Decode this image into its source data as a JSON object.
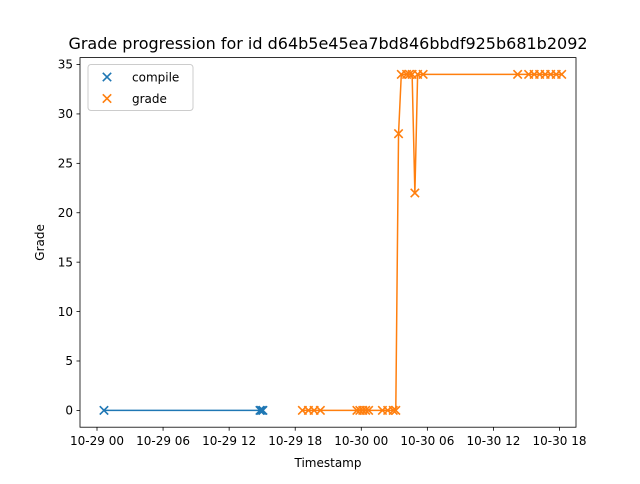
{
  "chart_data": {
    "type": "line",
    "title": "Grade progression for id d64b5e45ea7bd846bbdf925b681b2092",
    "xlabel": "Timestamp",
    "ylabel": "Grade",
    "x_axis": "datetime",
    "xlim": [
      "2024-10-29T00:00",
      "2024-10-31T00:00"
    ],
    "ylim": [
      -1.7,
      35.7
    ],
    "y_ticks": [
      0,
      5,
      10,
      15,
      20,
      25,
      30,
      35
    ],
    "x_ticks": [
      {
        "t": "2024-10-29T00:00",
        "label": "10-29 00"
      },
      {
        "t": "2024-10-29T06:00",
        "label": "10-29 06"
      },
      {
        "t": "2024-10-29T12:00",
        "label": "10-29 12"
      },
      {
        "t": "2024-10-29T18:00",
        "label": "10-29 18"
      },
      {
        "t": "2024-10-30T00:00",
        "label": "10-30 00"
      },
      {
        "t": "2024-10-30T06:00",
        "label": "10-30 06"
      },
      {
        "t": "2024-10-30T12:00",
        "label": "10-30 12"
      },
      {
        "t": "2024-10-30T18:00",
        "label": "10-30 18"
      }
    ],
    "legend_position": "top-left",
    "grid": false,
    "series": [
      {
        "name": "compile",
        "color": "#1f77b4",
        "marker": "x",
        "points": [
          {
            "t": "2024-10-29T00:38",
            "y": 0
          },
          {
            "t": "2024-10-29T14:48",
            "y": 0
          },
          {
            "t": "2024-10-29T14:56",
            "y": 0
          },
          {
            "t": "2024-10-29T15:04",
            "y": 0
          }
        ]
      },
      {
        "name": "grade",
        "color": "#ff7f0e",
        "marker": "x",
        "points": [
          {
            "t": "2024-10-29T18:39",
            "y": 0
          },
          {
            "t": "2024-10-29T19:12",
            "y": 0
          },
          {
            "t": "2024-10-29T19:43",
            "y": 0
          },
          {
            "t": "2024-10-29T20:17",
            "y": 0
          },
          {
            "t": "2024-10-29T23:36",
            "y": 0
          },
          {
            "t": "2024-10-29T23:52",
            "y": 0
          },
          {
            "t": "2024-10-30T00:08",
            "y": 0
          },
          {
            "t": "2024-10-30T00:24",
            "y": 0
          },
          {
            "t": "2024-10-30T00:40",
            "y": 0
          },
          {
            "t": "2024-10-30T01:55",
            "y": 0
          },
          {
            "t": "2024-10-30T02:24",
            "y": 0
          },
          {
            "t": "2024-10-30T02:54",
            "y": 0
          },
          {
            "t": "2024-10-30T03:08",
            "y": 0
          },
          {
            "t": "2024-10-30T03:23",
            "y": 28
          },
          {
            "t": "2024-10-30T03:38",
            "y": 34
          },
          {
            "t": "2024-10-30T04:07",
            "y": 34
          },
          {
            "t": "2024-10-30T04:22",
            "y": 34
          },
          {
            "t": "2024-10-30T04:37",
            "y": 34
          },
          {
            "t": "2024-10-30T04:52",
            "y": 22
          },
          {
            "t": "2024-10-30T05:07",
            "y": 34
          },
          {
            "t": "2024-10-30T05:37",
            "y": 34
          },
          {
            "t": "2024-10-30T14:12",
            "y": 34
          },
          {
            "t": "2024-10-30T15:12",
            "y": 34
          },
          {
            "t": "2024-10-30T15:42",
            "y": 34
          },
          {
            "t": "2024-10-30T16:12",
            "y": 34
          },
          {
            "t": "2024-10-30T16:42",
            "y": 34
          },
          {
            "t": "2024-10-30T17:12",
            "y": 34
          },
          {
            "t": "2024-10-30T17:42",
            "y": 34
          },
          {
            "t": "2024-10-30T18:12",
            "y": 34
          }
        ]
      }
    ]
  }
}
